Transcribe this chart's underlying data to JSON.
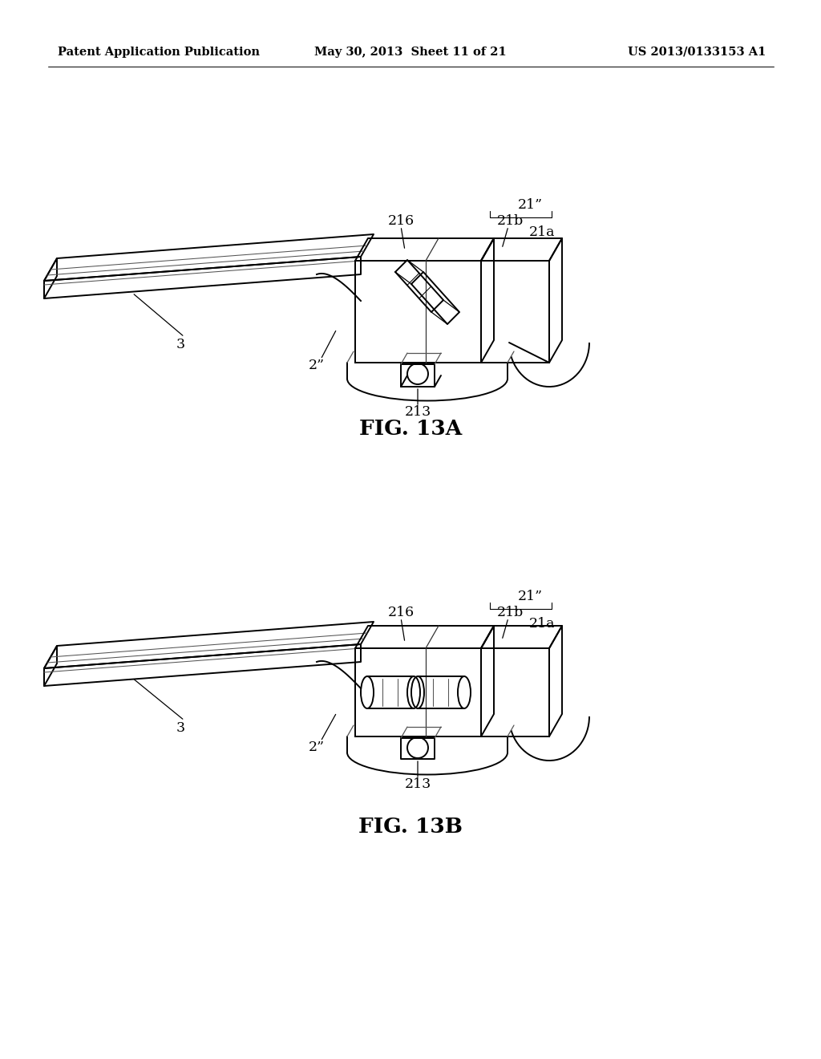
{
  "background_color": "#ffffff",
  "page_width": 10.24,
  "page_height": 13.2,
  "header_left": "Patent Application Publication",
  "header_center": "May 30, 2013  Sheet 11 of 21",
  "header_right": "US 2013/0133153 A1",
  "header_fontsize": 10.5,
  "caption_a": "FIG. 13A",
  "caption_b": "FIG. 13B",
  "caption_fontsize": 19,
  "line_color": "#000000",
  "thin_color": "#444444",
  "lw_main": 1.4,
  "lw_thin": 0.75,
  "lw_inner": 0.9,
  "label_fontsize": 12.5
}
